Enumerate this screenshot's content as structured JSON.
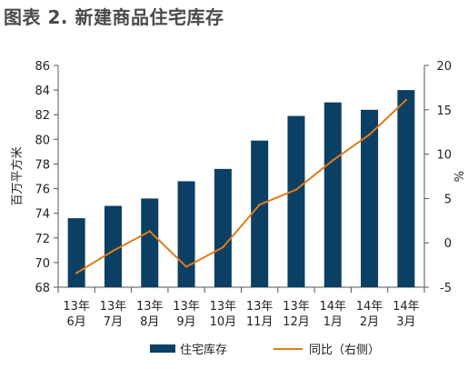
{
  "chart_data": {
    "type": "bar",
    "title": "图表 2. 新建商品住宅库存",
    "categories": [
      [
        "13年",
        "6月"
      ],
      [
        "13年",
        "7月"
      ],
      [
        "13年",
        "8月"
      ],
      [
        "13年",
        "9月"
      ],
      [
        "13年",
        "10月"
      ],
      [
        "13年",
        "11月"
      ],
      [
        "13年",
        "12月"
      ],
      [
        "14年",
        "1月"
      ],
      [
        "14年",
        "2月"
      ],
      [
        "14年",
        "3月"
      ]
    ],
    "series": [
      {
        "name": "住宅库存",
        "type": "bar",
        "axis": "left",
        "color": "#0b3f63",
        "values": [
          73.6,
          74.6,
          75.2,
          76.6,
          77.6,
          79.9,
          81.9,
          83.0,
          82.4,
          84.0
        ]
      },
      {
        "name": "同比（右侧）",
        "type": "line",
        "axis": "right",
        "color": "#e07b1a",
        "values": [
          -3.4,
          -0.9,
          1.3,
          -2.7,
          -0.5,
          4.3,
          6.0,
          9.3,
          12.2,
          16.1
        ]
      }
    ],
    "ylabel": "百万平方米",
    "ylabel_right": "%",
    "ylim": [
      68,
      86
    ],
    "yticks": [
      68,
      70,
      72,
      74,
      76,
      78,
      80,
      82,
      84,
      86
    ],
    "ylim_right": [
      -5,
      20
    ],
    "yticks_right": [
      -5,
      0,
      5,
      10,
      15,
      20
    ],
    "legend_position": "bottom",
    "grid": false
  }
}
